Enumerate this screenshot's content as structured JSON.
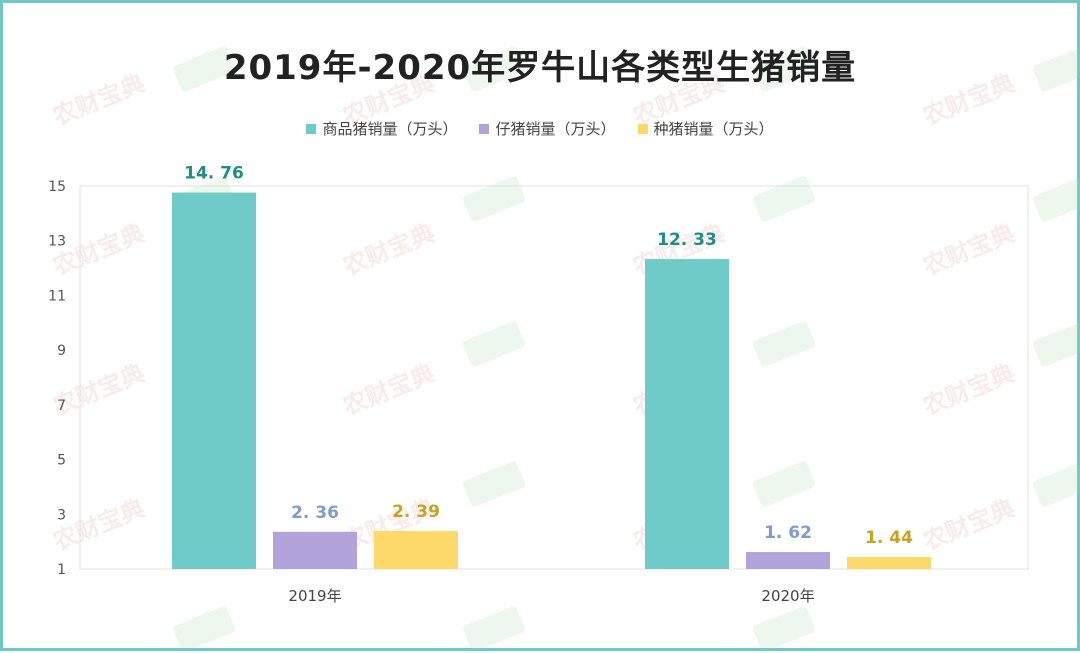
{
  "title": "2019年-2020年罗牛山各类型生猪销量",
  "watermark_text": "农财宝典",
  "colors": {
    "commercial": "#6ecbc7",
    "piglet": "#b3a3db",
    "breeding": "#fdd96b",
    "commercial_label": "#1e8c88",
    "piglet_label": "#7f9bd0",
    "breeding_label": "#c9a21e",
    "border": "#6fc8c6"
  },
  "chart_data": {
    "type": "bar",
    "categories": [
      "2019年",
      "2020年"
    ],
    "series": [
      {
        "name": "商品猪销量（万头）",
        "values": [
          14.76,
          12.33
        ],
        "labels": [
          "14. 76",
          "12. 33"
        ]
      },
      {
        "name": "仔猪销量（万头）",
        "values": [
          2.36,
          1.62
        ],
        "labels": [
          "2. 36",
          "1. 62"
        ]
      },
      {
        "name": "种猪销量（万头）",
        "values": [
          2.39,
          1.44
        ],
        "labels": [
          "2. 39",
          "1. 44"
        ]
      }
    ],
    "yticks": [
      "1",
      "3",
      "5",
      "7",
      "9",
      "11",
      "13",
      "15"
    ],
    "ylim": [
      1,
      15
    ],
    "grid": false,
    "legend": "top-center"
  }
}
